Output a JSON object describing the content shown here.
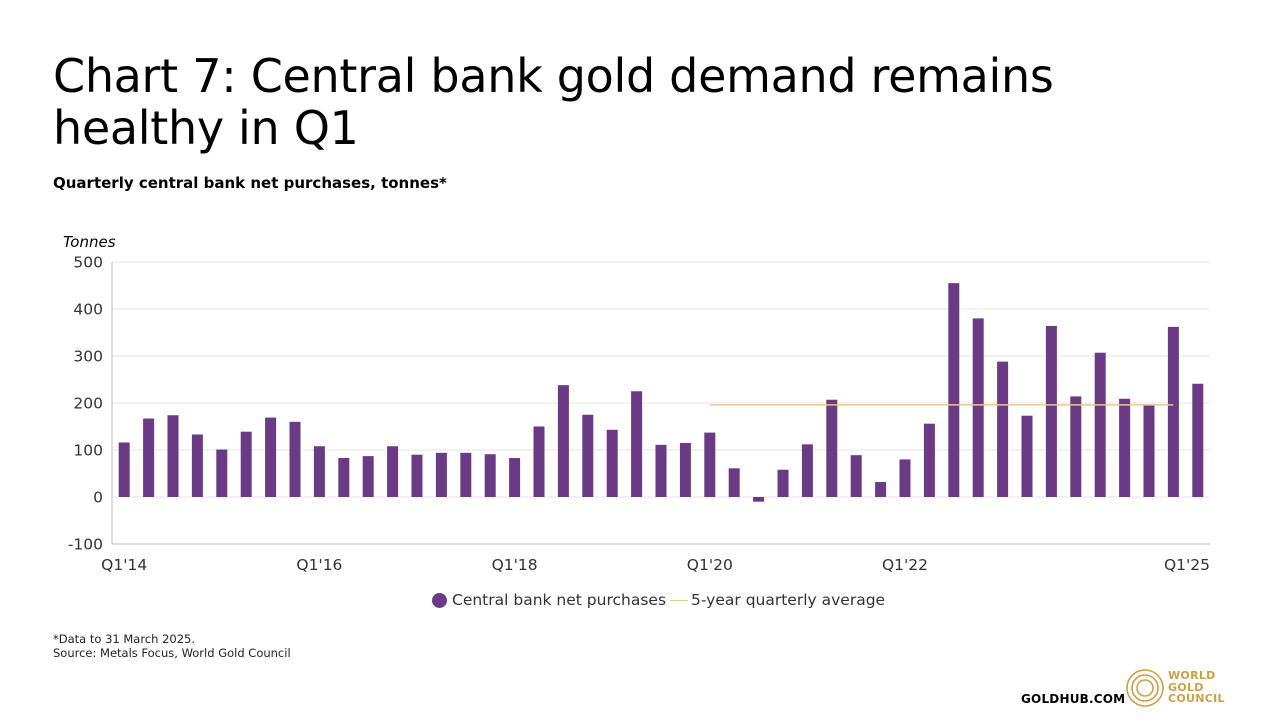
{
  "page": {
    "title": "Chart 7: Central bank gold demand remains healthy in Q1",
    "subtitle": "Quarterly central bank net purchases, tonnes*",
    "footnote_1": "*Data to 31 March 2025.",
    "footnote_2": "Source: Metals Focus, World Gold Council",
    "goldhub": "GOLDHUB.COM",
    "wgc_line1": "WORLD",
    "wgc_line2": "GOLD",
    "wgc_line3": "COUNCIL"
  },
  "colors": {
    "bar": "#6b3a85",
    "average_line": "#e9c98a",
    "grid": "#e6e6e6",
    "axis": "#bbbbbb",
    "brand_gold": "#c9a04a"
  },
  "chart_data": {
    "type": "bar",
    "ylabel": "Tonnes",
    "ylim": [
      -100,
      500
    ],
    "yticks": [
      -100,
      0,
      100,
      200,
      300,
      400,
      500
    ],
    "xtick_labels": [
      {
        "label": "Q1'14",
        "index": 0
      },
      {
        "label": "Q1'16",
        "index": 8
      },
      {
        "label": "Q1'18",
        "index": 16
      },
      {
        "label": "Q1'20",
        "index": 24
      },
      {
        "label": "Q1'22",
        "index": 32
      },
      {
        "label": "Q1'25",
        "index": 44
      }
    ],
    "categories": [
      "Q1'14",
      "Q2'14",
      "Q3'14",
      "Q4'14",
      "Q1'15",
      "Q2'15",
      "Q3'15",
      "Q4'15",
      "Q1'16",
      "Q2'16",
      "Q3'16",
      "Q4'16",
      "Q1'17",
      "Q2'17",
      "Q3'17",
      "Q4'17",
      "Q1'18",
      "Q2'18",
      "Q3'18",
      "Q4'18",
      "Q1'19",
      "Q2'19",
      "Q3'19",
      "Q4'19",
      "Q1'20",
      "Q2'20",
      "Q3'20",
      "Q4'20",
      "Q1'21",
      "Q2'21",
      "Q3'21",
      "Q4'21",
      "Q1'22",
      "Q2'22",
      "Q3'22",
      "Q4'22",
      "Q1'23",
      "Q2'23",
      "Q3'23",
      "Q4'23",
      "Q1'24",
      "Q2'24",
      "Q3'24",
      "Q4'24",
      "Q1'25"
    ],
    "series": [
      {
        "name": "Central bank net purchases",
        "type": "bar",
        "values": [
          116,
          167,
          174,
          133,
          101,
          139,
          169,
          160,
          108,
          83,
          87,
          108,
          90,
          94,
          94,
          91,
          83,
          150,
          238,
          175,
          143,
          225,
          111,
          115,
          137,
          61,
          -10,
          58,
          112,
          207,
          89,
          32,
          80,
          156,
          455,
          380,
          288,
          173,
          364,
          214,
          307,
          209,
          196,
          362,
          241
        ]
      },
      {
        "name": "5-year quarterly average",
        "type": "line",
        "start_index": 24,
        "end_index": 43,
        "value": 196
      }
    ],
    "legend": "bottom-center",
    "grid": true
  }
}
